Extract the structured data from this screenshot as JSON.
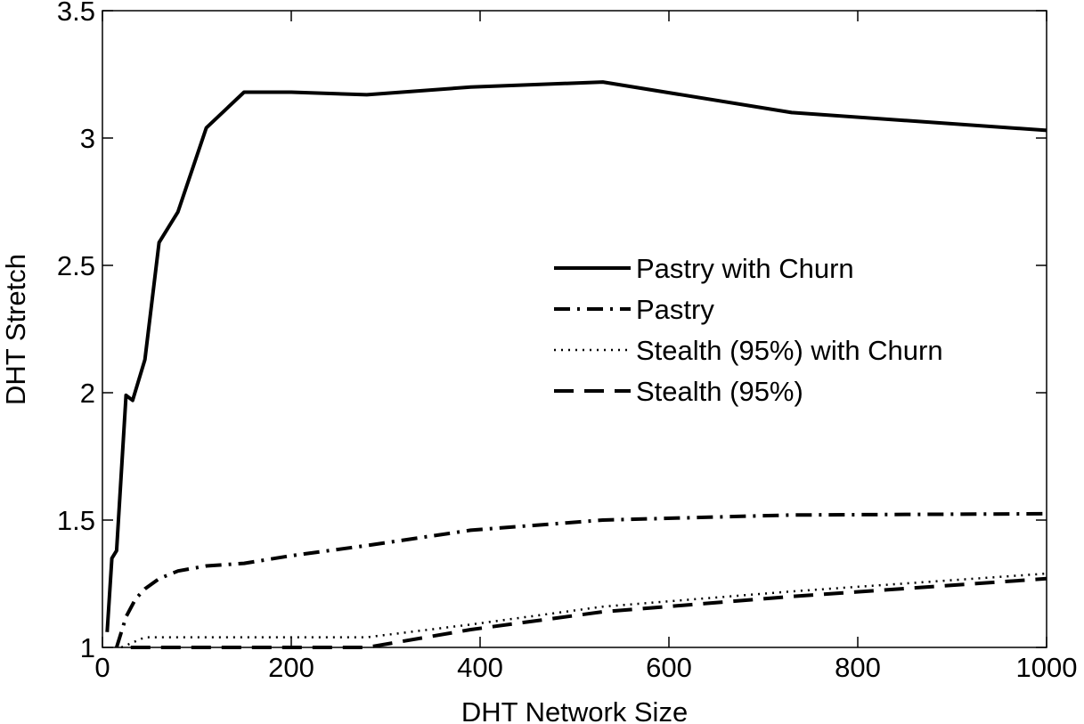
{
  "chart_data": {
    "type": "line",
    "title": "",
    "xlabel": "DHT Network Size",
    "ylabel": "DHT Stretch",
    "xlim": [
      0,
      1000
    ],
    "ylim": [
      1,
      3.5
    ],
    "xticks": [
      0,
      200,
      400,
      600,
      800,
      1000
    ],
    "yticks": [
      1,
      1.5,
      2,
      2.5,
      3,
      3.5
    ],
    "xtick_labels": [
      "0",
      "200",
      "400",
      "600",
      "800",
      "1000"
    ],
    "ytick_labels": [
      "1",
      "1.5",
      "2",
      "2.5",
      "3",
      "3.5"
    ],
    "grid": false,
    "legend_position": "center-right",
    "series": [
      {
        "name": "Pastry with Churn",
        "style": "solid",
        "color": "#000000",
        "x": [
          5,
          10,
          15,
          25,
          32,
          45,
          60,
          80,
          110,
          150,
          200,
          280,
          390,
          530,
          730,
          1000
        ],
        "y": [
          1.06,
          1.35,
          1.38,
          1.99,
          1.97,
          2.13,
          2.59,
          2.71,
          3.04,
          3.18,
          3.18,
          3.17,
          3.2,
          3.22,
          3.1,
          3.03
        ]
      },
      {
        "name": "Pastry",
        "style": "dash-dot",
        "color": "#000000",
        "x": [
          15,
          25,
          35,
          45,
          60,
          80,
          110,
          150,
          200,
          280,
          390,
          530,
          730,
          1000
        ],
        "y": [
          1.0,
          1.12,
          1.19,
          1.23,
          1.27,
          1.3,
          1.32,
          1.33,
          1.36,
          1.4,
          1.46,
          1.5,
          1.52,
          1.525
        ]
      },
      {
        "name": "Stealth (95%) with Churn",
        "style": "dotted",
        "color": "#000000",
        "x": [
          20,
          45,
          100,
          200,
          280,
          390,
          530,
          730,
          1000
        ],
        "y": [
          1.0,
          1.04,
          1.04,
          1.04,
          1.04,
          1.09,
          1.16,
          1.22,
          1.29
        ]
      },
      {
        "name": "Stealth (95%)",
        "style": "dashed",
        "color": "#000000",
        "x": [
          30,
          100,
          200,
          280,
          390,
          530,
          730,
          1000
        ],
        "y": [
          1.0,
          1.0,
          1.0,
          1.0,
          1.07,
          1.14,
          1.2,
          1.27
        ]
      }
    ]
  }
}
